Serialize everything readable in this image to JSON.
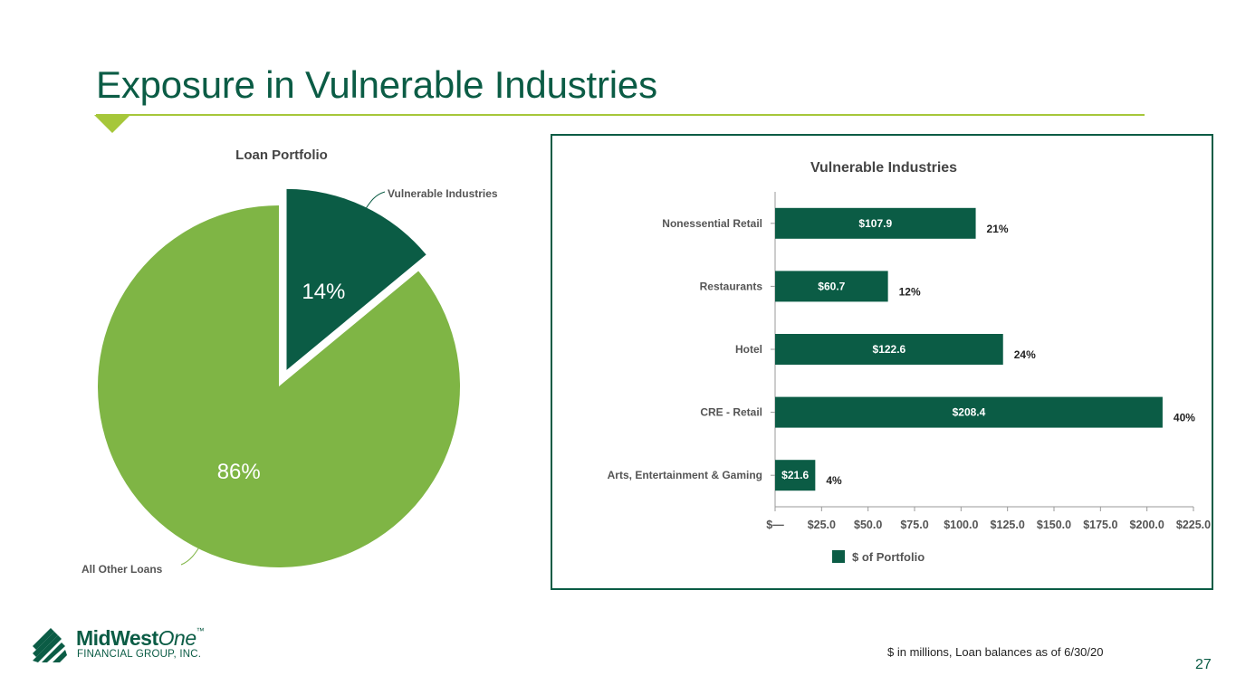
{
  "slide": {
    "title": "Exposure in Vulnerable Industries",
    "footnote": "$ in millions, Loan balances as of 6/30/20",
    "page_number": "27",
    "logo": {
      "name_main": "MidWest",
      "name_italic": "One",
      "tm": "™",
      "subtitle": "FINANCIAL GROUP, INC."
    }
  },
  "colors": {
    "brand_green": "#0b5c45",
    "light_green": "#7fb545",
    "accent_lime": "#a6c73a"
  },
  "chart_data": [
    {
      "type": "pie",
      "title": "Loan Portfolio",
      "slices": [
        {
          "name": "Vulnerable Industries",
          "value": 14,
          "label": "14%",
          "color": "#0b5c45",
          "exploded": true
        },
        {
          "name": "All Other Loans",
          "value": 86,
          "label": "86%",
          "color": "#7fb545",
          "exploded": false
        }
      ]
    },
    {
      "type": "bar",
      "orientation": "horizontal",
      "title": "Vulnerable Industries",
      "categories": [
        "Nonessential Retail",
        "Restaurants",
        "Hotel",
        "CRE - Retail",
        "Arts, Entertainment & Gaming"
      ],
      "series": [
        {
          "name": "$ of Portfolio",
          "color": "#0b5c45",
          "values": [
            107.9,
            60.7,
            122.6,
            208.4,
            21.6
          ],
          "value_labels": [
            "$107.9",
            "$60.7",
            "$122.6",
            "$208.4",
            "$21.6"
          ]
        }
      ],
      "percent_labels": [
        "21%",
        "12%",
        "24%",
        "40%",
        "4%"
      ],
      "xlim": [
        0,
        225
      ],
      "xticks": [
        0,
        25,
        50,
        75,
        100,
        125,
        150,
        175,
        200,
        225
      ],
      "xtick_labels": [
        "$—",
        "$25.0",
        "$50.0",
        "$75.0",
        "$100.0",
        "$125.0",
        "$150.0",
        "$175.0",
        "$200.0",
        "$225.0"
      ],
      "legend": {
        "position": "bottom"
      }
    }
  ]
}
